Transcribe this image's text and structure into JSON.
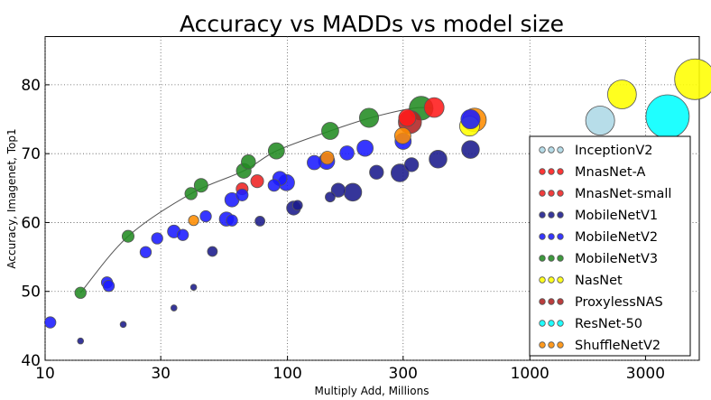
{
  "chart_data": {
    "type": "scatter",
    "title": "Accuracy vs MADDs vs model size",
    "xlabel": "Multiply Add, Millions",
    "ylabel": "Accuracy, Imagenet, Top1",
    "x_scale": "log",
    "xlim": [
      10,
      5000
    ],
    "ylim": [
      40,
      87
    ],
    "x_ticks": [
      10,
      30,
      100,
      300,
      1000,
      3000
    ],
    "x_tick_labels": [
      "10",
      "30",
      "100",
      "300",
      "1000",
      "3000"
    ],
    "y_ticks": [
      40,
      50,
      60,
      70,
      80
    ],
    "y_tick_labels": [
      "40",
      "50",
      "60",
      "70",
      "80"
    ],
    "grid": true,
    "legend_position": "lower-right",
    "size_meaning": "model size (parameters, millions)",
    "frontier_curve": [
      [
        14,
        49.8
      ],
      [
        22,
        58
      ],
      [
        40,
        64.2
      ],
      [
        66,
        67.5
      ],
      [
        90,
        70.4
      ],
      [
        150,
        73.3
      ],
      [
        220,
        75.2
      ],
      [
        330,
        76.6
      ],
      [
        400,
        76.6
      ]
    ],
    "series": [
      {
        "name": "InceptionV2",
        "color": "#add8e6",
        "points": [
          {
            "x": 1950,
            "y": 74.8,
            "size": 11.2
          }
        ]
      },
      {
        "name": "MnasNet-A",
        "color": "#ff1a1a",
        "points": [
          {
            "x": 312,
            "y": 75.2,
            "size": 3.9
          },
          {
            "x": 403,
            "y": 76.7,
            "size": 5.2
          }
        ]
      },
      {
        "name": "MnasNet-small",
        "color": "#ee2222",
        "points": [
          {
            "x": 65,
            "y": 64.9,
            "size": 1.9
          },
          {
            "x": 75,
            "y": 66.0,
            "size": 2.2
          }
        ]
      },
      {
        "name": "MobileNetV1",
        "color": "#1a1a8c",
        "points": [
          {
            "x": 569,
            "y": 70.6,
            "size": 4.2
          },
          {
            "x": 418,
            "y": 69.2,
            "size": 4.2
          },
          {
            "x": 291,
            "y": 67.2,
            "size": 4.2
          },
          {
            "x": 186,
            "y": 64.4,
            "size": 4.2
          },
          {
            "x": 325,
            "y": 68.4,
            "size": 2.6
          },
          {
            "x": 233,
            "y": 67.3,
            "size": 2.6
          },
          {
            "x": 162,
            "y": 64.7,
            "size": 2.6
          },
          {
            "x": 106,
            "y": 62.1,
            "size": 2.6
          },
          {
            "x": 150,
            "y": 63.7,
            "size": 1.3
          },
          {
            "x": 110,
            "y": 62.5,
            "size": 1.3
          },
          {
            "x": 77,
            "y": 60.2,
            "size": 1.3
          },
          {
            "x": 49,
            "y": 55.8,
            "size": 1.3
          },
          {
            "x": 41,
            "y": 50.6,
            "size": 0.5
          },
          {
            "x": 34,
            "y": 47.6,
            "size": 0.5
          },
          {
            "x": 21,
            "y": 45.2,
            "size": 0.5
          },
          {
            "x": 14,
            "y": 42.8,
            "size": 0.5
          }
        ]
      },
      {
        "name": "MobileNetV2",
        "color": "#1a1aff",
        "points": [
          {
            "x": 10.5,
            "y": 45.5,
            "size": 1.7
          },
          {
            "x": 18,
            "y": 51.3,
            "size": 1.7
          },
          {
            "x": 18.3,
            "y": 50.8,
            "size": 1.7
          },
          {
            "x": 26,
            "y": 55.7,
            "size": 1.7
          },
          {
            "x": 29,
            "y": 57.7,
            "size": 1.7
          },
          {
            "x": 34,
            "y": 58.7,
            "size": 2.2
          },
          {
            "x": 37,
            "y": 58.2,
            "size": 1.7
          },
          {
            "x": 46,
            "y": 60.9,
            "size": 1.7
          },
          {
            "x": 56,
            "y": 60.5,
            "size": 2.7
          },
          {
            "x": 59,
            "y": 60.3,
            "size": 1.7
          },
          {
            "x": 59,
            "y": 63.3,
            "size": 2.7
          },
          {
            "x": 65,
            "y": 64.0,
            "size": 1.9
          },
          {
            "x": 88,
            "y": 65.4,
            "size": 1.9
          },
          {
            "x": 93,
            "y": 66.4,
            "size": 2.7
          },
          {
            "x": 99,
            "y": 65.8,
            "size": 3.5
          },
          {
            "x": 129,
            "y": 68.7,
            "size": 2.7
          },
          {
            "x": 145,
            "y": 68.9,
            "size": 3.5
          },
          {
            "x": 176,
            "y": 70.1,
            "size": 2.7
          },
          {
            "x": 209,
            "y": 70.8,
            "size": 3.5
          },
          {
            "x": 300,
            "y": 71.8,
            "size": 3.5
          },
          {
            "x": 569,
            "y": 75.0,
            "size": 4.9
          }
        ]
      },
      {
        "name": "MobileNetV3",
        "color": "#228b22",
        "points": [
          {
            "x": 14,
            "y": 49.8,
            "size": 1.7
          },
          {
            "x": 22,
            "y": 58.0,
            "size": 1.9
          },
          {
            "x": 40,
            "y": 64.2,
            "size": 2.0
          },
          {
            "x": 44,
            "y": 65.4,
            "size": 2.5
          },
          {
            "x": 66,
            "y": 67.5,
            "size": 2.9
          },
          {
            "x": 69,
            "y": 68.8,
            "size": 2.7
          },
          {
            "x": 90,
            "y": 70.4,
            "size": 3.5
          },
          {
            "x": 150,
            "y": 73.3,
            "size": 3.9
          },
          {
            "x": 217,
            "y": 75.2,
            "size": 4.9
          },
          {
            "x": 356,
            "y": 76.6,
            "size": 7.5
          }
        ]
      },
      {
        "name": "NasNet",
        "color": "#ffff00",
        "points": [
          {
            "x": 564,
            "y": 74.0,
            "size": 5.3
          },
          {
            "x": 2400,
            "y": 78.6,
            "size": 11.0
          },
          {
            "x": 4800,
            "y": 80.8,
            "size": 22.0
          }
        ]
      },
      {
        "name": "ProxylessNAS",
        "color": "#b22222",
        "points": [
          {
            "x": 320,
            "y": 74.6,
            "size": 7.1
          }
        ]
      },
      {
        "name": "ResNet-50",
        "color": "#00ffff",
        "points": [
          {
            "x": 3700,
            "y": 75.4,
            "size": 25.0
          }
        ]
      },
      {
        "name": "ShuffleNetV2",
        "color": "#ff8c00",
        "points": [
          {
            "x": 41,
            "y": 60.3,
            "size": 1.4
          },
          {
            "x": 146,
            "y": 69.4,
            "size": 2.3
          },
          {
            "x": 299,
            "y": 72.6,
            "size": 3.5
          },
          {
            "x": 591,
            "y": 74.9,
            "size": 7.4
          }
        ]
      }
    ]
  }
}
